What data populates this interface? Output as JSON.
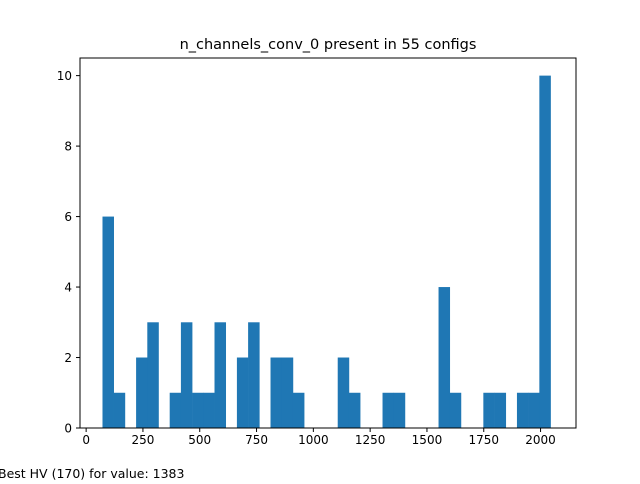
{
  "chart_data": {
    "type": "bar",
    "title": "n_channels_conv_0 present in 55 configs",
    "xlabel": "",
    "ylabel": "",
    "xlim": [
      -27,
      2156
    ],
    "ylim": [
      0,
      10.5
    ],
    "xticks": [
      0,
      250,
      500,
      750,
      1000,
      1250,
      1500,
      1750,
      2000
    ],
    "xtick_labels": [
      "0",
      "250",
      "500",
      "750",
      "1000",
      "1250",
      "1500",
      "1750",
      "2000"
    ],
    "yticks": [
      0,
      2,
      4,
      6,
      8,
      10
    ],
    "ytick_labels": [
      "0",
      "2",
      "4",
      "6",
      "8",
      "10"
    ],
    "bar_color": "#1f77b4",
    "bin_start": 72,
    "bin_width": 49.3,
    "values": [
      6,
      1,
      0,
      2,
      3,
      0,
      1,
      3,
      1,
      1,
      3,
      0,
      2,
      3,
      0,
      2,
      2,
      1,
      0,
      0,
      0,
      2,
      1,
      0,
      0,
      1,
      1,
      0,
      0,
      0,
      4,
      1,
      0,
      0,
      1,
      1,
      0,
      1,
      1,
      10
    ],
    "grid": false,
    "legend": "none"
  },
  "footer": {
    "text": "Best HV (170) for value: 1383"
  }
}
